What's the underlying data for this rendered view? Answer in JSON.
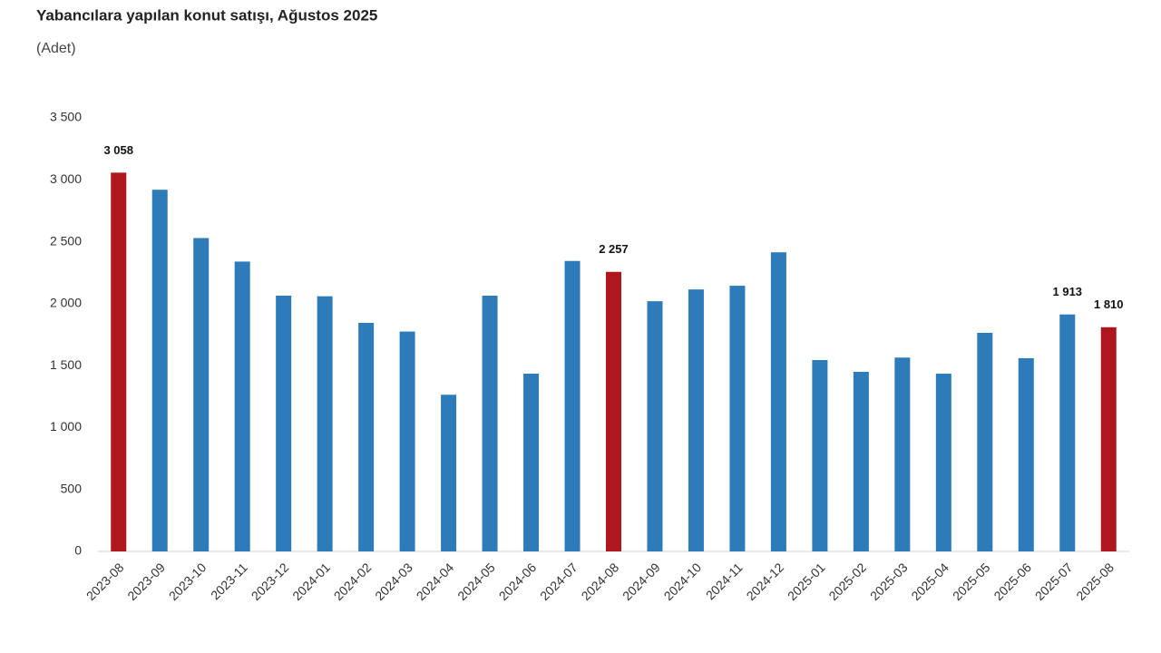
{
  "chart_data": {
    "type": "bar",
    "title": "Yabancılara yapılan konut satışı, Ağustos 2025",
    "subtitle": "(Adet)",
    "categories": [
      "2023-08",
      "2023-09",
      "2023-10",
      "2023-11",
      "2023-12",
      "2024-01",
      "2024-02",
      "2024-03",
      "2024-04",
      "2024-05",
      "2024-06",
      "2024-07",
      "2024-08",
      "2024-09",
      "2024-10",
      "2024-11",
      "2024-12",
      "2025-01",
      "2025-02",
      "2025-03",
      "2025-04",
      "2025-05",
      "2025-06",
      "2025-07",
      "2025-08"
    ],
    "values": [
      3058,
      2920,
      2530,
      2340,
      2065,
      2060,
      1845,
      1775,
      1265,
      2065,
      1435,
      2345,
      2257,
      2020,
      2115,
      2145,
      2415,
      1545,
      1450,
      1565,
      1435,
      1765,
      1560,
      1913,
      1810
    ],
    "value_labels": [
      "3 058",
      null,
      null,
      null,
      null,
      null,
      null,
      null,
      null,
      null,
      null,
      null,
      "2 257",
      null,
      null,
      null,
      null,
      null,
      null,
      null,
      null,
      null,
      null,
      "1 913",
      "1 810"
    ],
    "colors": [
      "#b0161e",
      "#2e7bb9",
      "#2e7bb9",
      "#2e7bb9",
      "#2e7bb9",
      "#2e7bb9",
      "#2e7bb9",
      "#2e7bb9",
      "#2e7bb9",
      "#2e7bb9",
      "#2e7bb9",
      "#2e7bb9",
      "#b0161e",
      "#2e7bb9",
      "#2e7bb9",
      "#2e7bb9",
      "#2e7bb9",
      "#2e7bb9",
      "#2e7bb9",
      "#2e7bb9",
      "#2e7bb9",
      "#2e7bb9",
      "#2e7bb9",
      "#2e7bb9",
      "#b0161e"
    ],
    "ylim": [
      0,
      3500
    ],
    "yticks": [
      0,
      500,
      {
        "value": 1000,
        "label": "1 000"
      },
      {
        "value": 1500,
        "label": "1 500"
      },
      {
        "value": 2000,
        "label": "2 000"
      },
      {
        "value": 2500,
        "label": "2 500"
      },
      {
        "value": 3000,
        "label": "3 000"
      },
      {
        "value": 3500,
        "label": "3 500"
      }
    ],
    "grid": false
  }
}
